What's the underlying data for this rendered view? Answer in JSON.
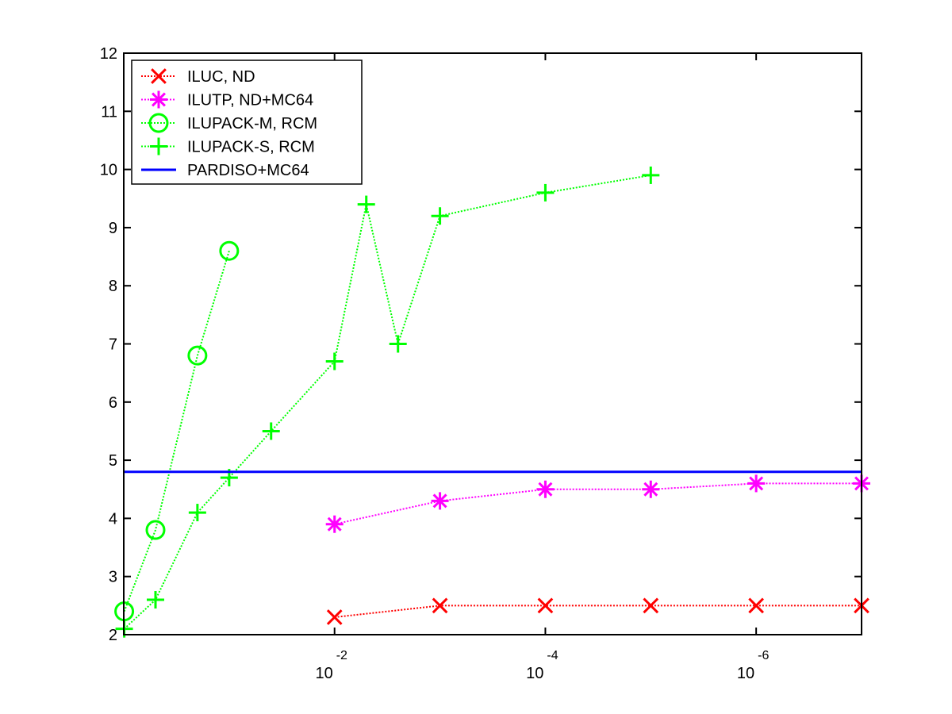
{
  "chart_data": {
    "type": "line",
    "xscale": "log",
    "xdir": "reverse",
    "xlim": [
      1,
      1e-07
    ],
    "ylim": [
      2,
      12
    ],
    "yticks": [
      2,
      3,
      4,
      5,
      6,
      7,
      8,
      9,
      10,
      11,
      12
    ],
    "xticks": [
      {
        "value": 0.01,
        "base": "10",
        "exponent": "-2"
      },
      {
        "value": 0.0001,
        "base": "10",
        "exponent": "-4"
      },
      {
        "value": 1e-06,
        "base": "10",
        "exponent": "-6"
      }
    ],
    "title": "",
    "xlabel": "",
    "ylabel": "",
    "grid": false,
    "legend_position": "top-left",
    "series": [
      {
        "name": "ILUC,  ND",
        "color": "#ff0000",
        "marker": "x",
        "linestyle": "dotted",
        "x": [
          0.01,
          0.001,
          0.0001,
          1e-05,
          1e-06,
          1e-07
        ],
        "y": [
          2.3,
          2.5,
          2.5,
          2.5,
          2.5,
          2.5
        ]
      },
      {
        "name": "ILUTP,  ND+MC64",
        "color": "#ff00ff",
        "marker": "asterisk",
        "linestyle": "dotted",
        "x": [
          0.01,
          0.001,
          0.0001,
          1e-05,
          1e-06,
          1e-07
        ],
        "y": [
          3.9,
          4.3,
          4.5,
          4.5,
          4.6,
          4.6
        ]
      },
      {
        "name": "ILUPACK-M, RCM",
        "color": "#00ff00",
        "marker": "circle",
        "linestyle": "dotted",
        "x": [
          0.99,
          0.5,
          0.2,
          0.1
        ],
        "y": [
          2.4,
          3.8,
          6.8,
          8.6
        ]
      },
      {
        "name": "ILUPACK-S, RCM",
        "color": "#00ff00",
        "marker": "plus",
        "linestyle": "dotted",
        "x": [
          0.99,
          0.5,
          0.2,
          0.1,
          0.04,
          0.01,
          0.005,
          0.0025,
          0.001,
          0.0001,
          1e-05
        ],
        "y": [
          2.1,
          2.6,
          4.1,
          4.7,
          5.5,
          6.7,
          9.4,
          7.0,
          9.2,
          9.6,
          9.9
        ]
      },
      {
        "name": "PARDISO+MC64",
        "color": "#0000ff",
        "marker": "none",
        "linestyle": "solid",
        "x": [
          1,
          1e-07
        ],
        "y": [
          4.8,
          4.8
        ]
      }
    ]
  }
}
